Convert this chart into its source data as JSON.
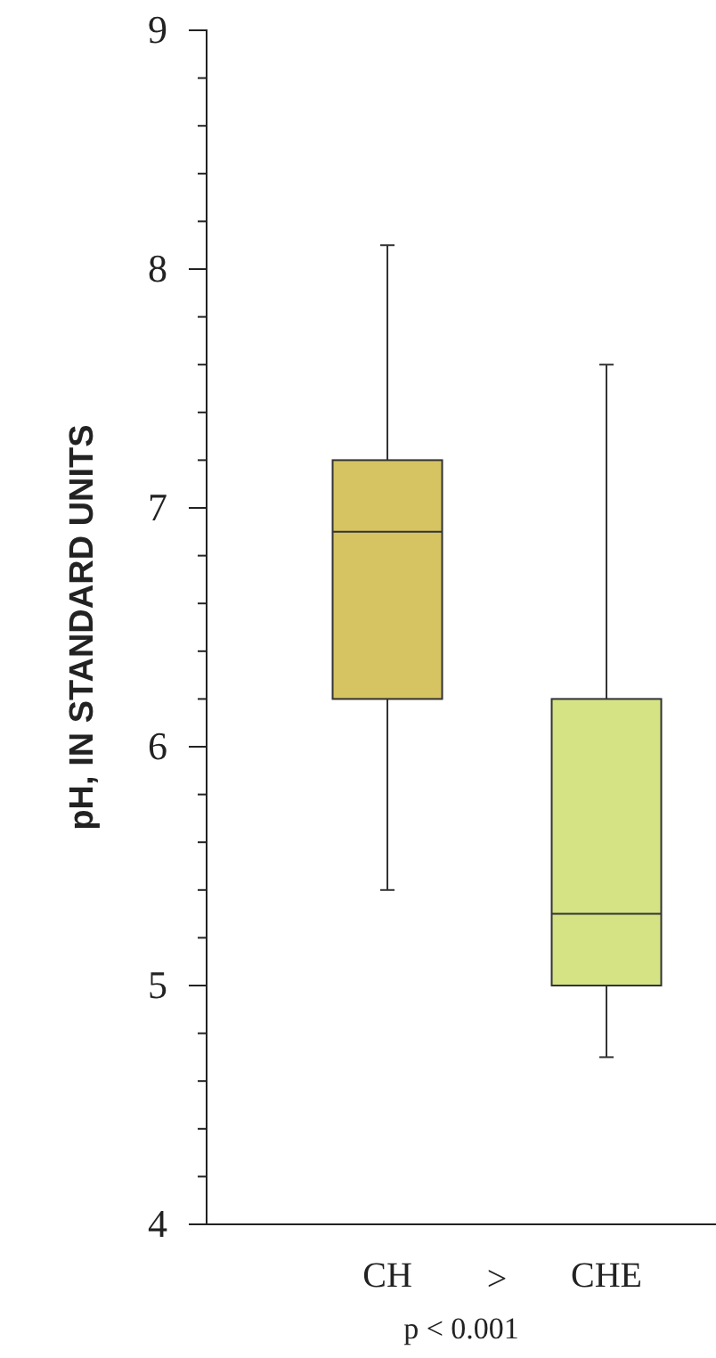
{
  "chart_data": {
    "type": "box",
    "ylabel": "pH, IN STANDARD UNITS",
    "categories": [
      "CH",
      "CHE"
    ],
    "colors": [
      "#d6c463",
      "#d5e384"
    ],
    "boxes": [
      {
        "low": 5.4,
        "q1": 6.2,
        "median": 6.9,
        "q3": 7.2,
        "high": 8.1
      },
      {
        "low": 4.7,
        "q1": 5.0,
        "median": 5.3,
        "q3": 6.2,
        "high": 7.6
      }
    ],
    "ylim": [
      4,
      9
    ],
    "yticks": [
      4,
      {
        "value": 4.2,
        "label": null
      },
      {
        "value": 4.4,
        "label": null
      },
      {
        "value": 4.6,
        "label": null
      },
      {
        "value": 4.8,
        "label": null
      },
      5,
      {
        "value": 5.2,
        "label": null
      },
      {
        "value": 5.4,
        "label": null
      },
      {
        "value": 5.6,
        "label": null
      },
      {
        "value": 5.8,
        "label": null
      },
      6,
      {
        "value": 6.2,
        "label": null
      },
      {
        "value": 6.4,
        "label": null
      },
      {
        "value": 6.6,
        "label": null
      },
      {
        "value": 6.8,
        "label": null
      },
      7,
      {
        "value": 7.2,
        "label": null
      },
      {
        "value": 7.4,
        "label": null
      },
      {
        "value": 7.6,
        "label": null
      },
      {
        "value": 7.8,
        "label": null
      },
      8,
      {
        "value": 8.2,
        "label": null
      },
      {
        "value": 8.4,
        "label": null
      },
      {
        "value": 8.6,
        "label": null
      },
      {
        "value": 8.8,
        "label": null
      },
      9
    ],
    "grid": false,
    "annotations": [
      ">",
      "p < 0.001"
    ]
  }
}
